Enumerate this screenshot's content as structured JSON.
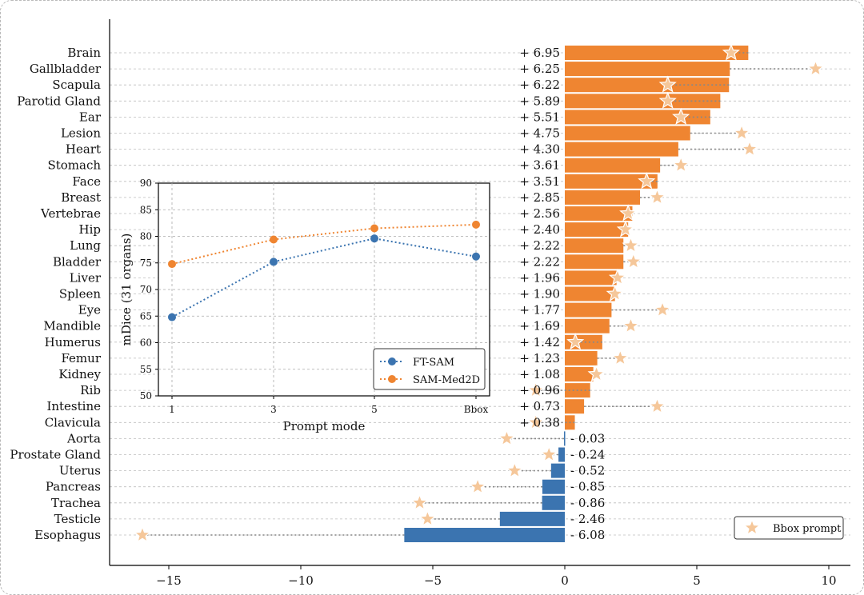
{
  "chart_data": {
    "type": "bar",
    "orientation": "horizontal",
    "xlabel": "",
    "xlim": [
      -17.5,
      10.5
    ],
    "xticks": [
      -15,
      -10,
      -5,
      0,
      5,
      10
    ],
    "xtick_labels": [
      "−15",
      "−10",
      "−5",
      "0",
      "5",
      "10"
    ],
    "grid": "horizontal dashed",
    "colors": {
      "positive": "#ef8531",
      "negative": "#3b74b0",
      "star": "#f5c79a",
      "star_edge": "#ffffff",
      "line": "#888888"
    },
    "categories": [
      "Brain",
      "Gallbladder",
      "Scapula",
      "Parotid Gland",
      "Ear",
      "Lesion",
      "Heart",
      "Stomach",
      "Face",
      "Breast",
      "Vertebrae",
      "Hip",
      "Lung",
      "Bladder",
      "Liver",
      "Spleen",
      "Eye",
      "Mandible",
      "Humerus",
      "Femur",
      "Kidney",
      "Rib",
      "Intestine",
      "Clavicula",
      "Aorta",
      "Prostate Gland",
      "Uterus",
      "Pancreas",
      "Trachea",
      "Testicle",
      "Esophagus"
    ],
    "values": [
      6.95,
      6.25,
      6.22,
      5.89,
      5.51,
      4.75,
      4.3,
      3.61,
      3.51,
      2.85,
      2.56,
      2.4,
      2.22,
      2.22,
      1.96,
      1.9,
      1.77,
      1.69,
      1.42,
      1.23,
      1.08,
      0.96,
      0.73,
      0.38,
      -0.03,
      -0.24,
      -0.52,
      -0.85,
      -0.86,
      -2.46,
      -6.08
    ],
    "value_labels": [
      "+ 6.95",
      "+ 6.25",
      "+ 6.22",
      "+ 5.89",
      "+ 5.51",
      "+ 4.75",
      "+ 4.30",
      "+ 3.61",
      "+ 3.51",
      "+ 2.85",
      "+ 2.56",
      "+ 2.40",
      "+ 2.22",
      "+ 2.22",
      "+ 1.96",
      "+ 1.90",
      "+ 1.77",
      "+ 1.69",
      "+ 1.42",
      "+ 1.23",
      "+ 1.08",
      "+ 0.96",
      "+ 0.73",
      "+ 0.38",
      "- 0.03",
      "- 0.24",
      "- 0.52",
      "- 0.85",
      "- 0.86",
      "- 2.46",
      "- 6.08"
    ],
    "bbox_prompt": [
      6.3,
      9.5,
      3.9,
      3.9,
      4.4,
      6.7,
      7.0,
      4.4,
      3.1,
      3.5,
      2.4,
      2.3,
      2.5,
      2.6,
      2.0,
      1.9,
      3.7,
      2.5,
      0.4,
      2.1,
      1.2,
      -1.1,
      3.5,
      -1.1,
      -2.2,
      -0.6,
      -1.9,
      -3.3,
      -5.5,
      -5.2,
      -16.0
    ],
    "legend": {
      "label": "Bbox prompt",
      "position": "bottom-right"
    },
    "inset": {
      "type": "line",
      "xlabel": "Prompt mode",
      "ylabel": "mDice (31 organs)",
      "categories": [
        "1",
        "3",
        "5",
        "Bbox"
      ],
      "ylim": [
        50,
        90
      ],
      "yticks": [
        50,
        55,
        60,
        65,
        70,
        75,
        80,
        85,
        90
      ],
      "series": [
        {
          "name": "FT-SAM",
          "values": [
            64.8,
            75.2,
            79.6,
            76.2
          ],
          "color": "#3b74b0"
        },
        {
          "name": "SAM-Med2D",
          "values": [
            74.8,
            79.4,
            81.5,
            82.2
          ],
          "color": "#ef8531"
        }
      ],
      "legend_position": "lower-right"
    }
  }
}
